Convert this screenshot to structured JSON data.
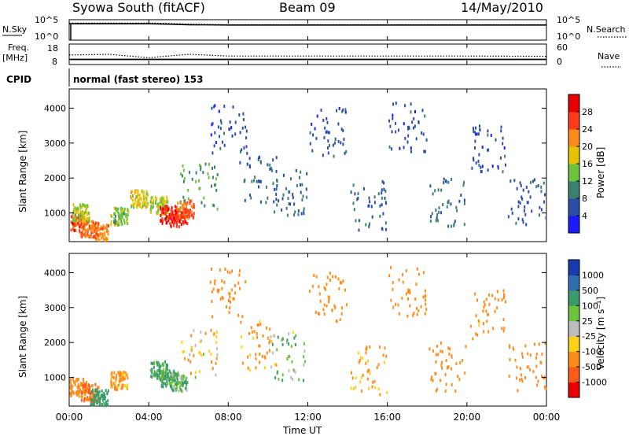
{
  "header": {
    "station": "Syowa South (fitACF)",
    "beam": "Beam 09",
    "date": "14/May/2010"
  },
  "top_panels": {
    "nsky_label": "N.Sky",
    "nsky_ticks": [
      "10^5",
      "10^0"
    ],
    "nsearch_label": "N.Search",
    "nsearch_ticks": [
      "10^5",
      "10^0"
    ],
    "freq_label_1": "Freq.",
    "freq_label_2": "[MHz]",
    "freq_ticks": [
      "18",
      "8"
    ],
    "nave_label": "Nave",
    "nave_ticks": [
      "60",
      "0"
    ],
    "cpid_label": "CPID",
    "cpid_value": "normal (fast stereo) 153"
  },
  "x_axis": {
    "label": "Time UT",
    "ticks": [
      "00:00",
      "04:00",
      "08:00",
      "12:00",
      "16:00",
      "20:00",
      "00:00"
    ]
  },
  "y_axis": {
    "label": "Slant Range [km]",
    "ticks": [
      "1000",
      "2000",
      "3000",
      "4000"
    ]
  },
  "colorbars": {
    "power": {
      "label": "Power [dB]",
      "ticks": [
        "4",
        "8",
        "12",
        "16",
        "20",
        "24",
        "28"
      ],
      "colors": [
        "#1a1aff",
        "#2a4ea8",
        "#3a7f70",
        "#6cc23c",
        "#e6c200",
        "#ff8c1a",
        "#ff3b1a",
        "#e60000"
      ]
    },
    "velocity": {
      "label": "Velocity [m s⁻¹]",
      "ticks": [
        "1000",
        "500",
        "100",
        "25",
        "-25",
        "-100",
        "-500",
        "-1000"
      ],
      "colors": [
        "#1a3ab0",
        "#2f6fb0",
        "#3a9a6a",
        "#6cc23c",
        "#bdbdbd",
        "#ffd21a",
        "#ff8c1a",
        "#ff5a1a",
        "#e60000"
      ]
    }
  },
  "chart_data": [
    {
      "type": "line",
      "title": "N.Sky / N.Search",
      "x": [
        0,
        2,
        4,
        5,
        6,
        8,
        12,
        16,
        20,
        24
      ],
      "series": [
        {
          "name": "N.Sky",
          "values": [
            10000.0,
            10000.0,
            10000.0,
            8000.0,
            6000.0,
            5000.0,
            5000.0,
            5000.0,
            5000.0,
            5000.0
          ]
        },
        {
          "name": "N.Search",
          "values": [
            15000.0,
            15000.0,
            15000.0,
            12000.0,
            8000.0,
            6000.0,
            6000.0,
            6000.0,
            6000.0,
            6000.0
          ]
        }
      ]
    },
    {
      "type": "line",
      "title": "Freq. / Nave",
      "x": [
        0,
        2,
        4,
        6,
        8,
        12,
        16,
        20,
        24
      ],
      "series": [
        {
          "name": "Freq. [MHz]",
          "values": [
            10.5,
            10.5,
            10.5,
            10.5,
            10.5,
            10.5,
            10.5,
            10.5,
            10.5
          ]
        },
        {
          "name": "Nave",
          "values": [
            28,
            30,
            20,
            30,
            25,
            25,
            25,
            25,
            24
          ]
        }
      ]
    },
    {
      "type": "heatmap",
      "title": "Power [dB]",
      "xlabel": "Time UT",
      "ylabel": "Slant Range [km]",
      "xlim": [
        0,
        24
      ],
      "ylim": [
        180,
        4550
      ],
      "points": [
        {
          "x": 0.4,
          "y": 700,
          "v": 26
        },
        {
          "x": 1.0,
          "y": 550,
          "v": 24
        },
        {
          "x": 1.5,
          "y": 400,
          "v": 22
        },
        {
          "x": 0.6,
          "y": 1000,
          "v": 16
        },
        {
          "x": 2.5,
          "y": 900,
          "v": 14
        },
        {
          "x": 3.5,
          "y": 1400,
          "v": 18
        },
        {
          "x": 4.5,
          "y": 1200,
          "v": 16
        },
        {
          "x": 5.0,
          "y": 950,
          "v": 28
        },
        {
          "x": 5.5,
          "y": 850,
          "v": 27
        },
        {
          "x": 5.8,
          "y": 1100,
          "v": 24
        },
        {
          "x": 6.5,
          "y": 1700,
          "v": 12
        },
        {
          "x": 8.0,
          "y": 3400,
          "v": 6
        },
        {
          "x": 9.5,
          "y": 1900,
          "v": 7
        },
        {
          "x": 11.0,
          "y": 1600,
          "v": 8
        },
        {
          "x": 13.0,
          "y": 3300,
          "v": 6
        },
        {
          "x": 15.0,
          "y": 1200,
          "v": 7
        },
        {
          "x": 17.0,
          "y": 3450,
          "v": 6
        },
        {
          "x": 19.0,
          "y": 1300,
          "v": 8
        },
        {
          "x": 21.0,
          "y": 2800,
          "v": 6
        },
        {
          "x": 23.0,
          "y": 1300,
          "v": 7
        }
      ]
    },
    {
      "type": "heatmap",
      "title": "Velocity [m s⁻¹]",
      "xlabel": "Time UT",
      "ylabel": "Slant Range [km]",
      "xlim": [
        0,
        24
      ],
      "ylim": [
        180,
        4550
      ],
      "points": [
        {
          "x": 0.4,
          "y": 700,
          "v": -300
        },
        {
          "x": 1.0,
          "y": 550,
          "v": -500
        },
        {
          "x": 1.5,
          "y": 400,
          "v": 200
        },
        {
          "x": 2.5,
          "y": 900,
          "v": -150
        },
        {
          "x": 4.5,
          "y": 1200,
          "v": 150
        },
        {
          "x": 5.0,
          "y": 950,
          "v": 120
        },
        {
          "x": 5.5,
          "y": 850,
          "v": 80
        },
        {
          "x": 6.5,
          "y": 1700,
          "v": -60
        },
        {
          "x": 8.0,
          "y": 3400,
          "v": -200
        },
        {
          "x": 9.5,
          "y": 1900,
          "v": -150
        },
        {
          "x": 11.0,
          "y": 1600,
          "v": 60
        },
        {
          "x": 13.0,
          "y": 3300,
          "v": -250
        },
        {
          "x": 15.0,
          "y": 1200,
          "v": -120
        },
        {
          "x": 17.0,
          "y": 3450,
          "v": -300
        },
        {
          "x": 19.0,
          "y": 1300,
          "v": -200
        },
        {
          "x": 21.0,
          "y": 2800,
          "v": -180
        },
        {
          "x": 23.0,
          "y": 1300,
          "v": -250
        }
      ]
    }
  ]
}
